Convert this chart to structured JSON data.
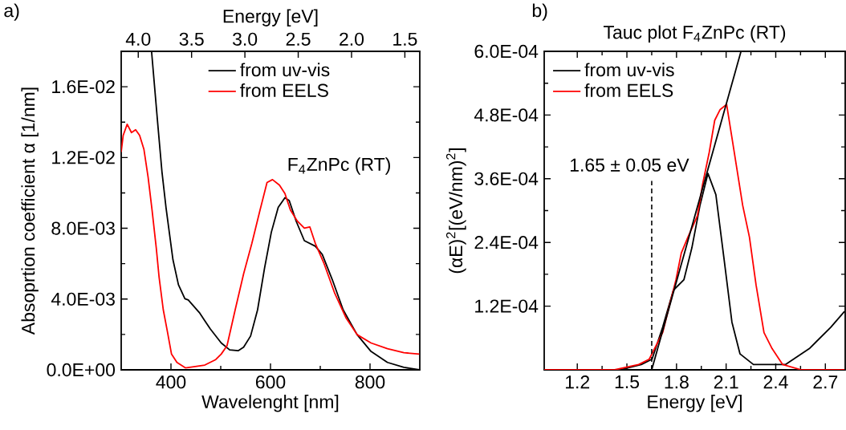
{
  "chart_data": [
    {
      "type": "line",
      "xlabel": "Wavelenght [nm]",
      "ylabel": "Absoprtion coefficient α [1/nm]",
      "x2label": "Energy [eV]",
      "xlim": [
        300,
        900
      ],
      "ylim": [
        0,
        0.018
      ],
      "x2lim": [
        4.16,
        1.36
      ],
      "xticks": [
        400,
        600,
        800
      ],
      "yticks": [
        {
          "value": 0,
          "label": "0.0E+00"
        },
        {
          "value": 0.004,
          "label": "4.0E-03"
        },
        {
          "value": 0.008,
          "label": "8.0E-03"
        },
        {
          "value": 0.012,
          "label": "1.2E-02"
        },
        {
          "value": 0.016,
          "label": "1.6E-02"
        }
      ],
      "x2ticks": [
        {
          "value": 4,
          "label": "4.0"
        },
        3.5,
        {
          "value": 3,
          "label": "3.0"
        },
        2.5,
        {
          "value": 2,
          "label": "2.0"
        },
        1.5
      ],
      "legend": "top",
      "annotations": [
        "a)",
        "F$_{4}$ZnPc (RT)"
      ],
      "series": [
        {
          "name": "from uv-vis",
          "color": "#000000",
          "x": [
            361,
            373.5,
            381.8,
            390,
            404,
            415,
            428,
            434.7,
            457,
            479,
            501,
            518,
            535,
            546,
            560,
            574,
            588,
            601.6,
            615.5,
            629,
            637.6,
            651.6,
            668,
            690,
            704,
            724,
            746,
            774,
            802,
            835,
            868,
            899
          ],
          "values": [
            0.018,
            0.01388,
            0.01122,
            0.00918,
            0.00622,
            0.00481,
            0.00402,
            0.00395,
            0.00324,
            0.00231,
            0.00152,
            0.00113,
            0.00108,
            0.00128,
            0.00191,
            0.00339,
            0.00574,
            0.00777,
            0.00918,
            0.00973,
            0.00957,
            0.0084,
            0.0073,
            0.00699,
            0.00652,
            0.00511,
            0.00339,
            0.00199,
            0.00104,
            0.00042,
            0.00014,
            0.0
          ]
        },
        {
          "name": "from EELS",
          "color": "#ff0000",
          "x": [
            300,
            304,
            312,
            320.6,
            329,
            337,
            345.6,
            354,
            362,
            370.6,
            376,
            384.5,
            393,
            401,
            412,
            429,
            446,
            468,
            490,
            501,
            512.6,
            529,
            546,
            562.6,
            579,
            593,
            604,
            618,
            629,
            640,
            654,
            668,
            679,
            690,
            707,
            729,
            752,
            774,
            802,
            835,
            868,
            899
          ],
          "values": [
            0.01231,
            0.01325,
            0.01388,
            0.01341,
            0.01357,
            0.01325,
            0.01247,
            0.0109,
            0.00903,
            0.00685,
            0.00527,
            0.0034,
            0.00214,
            0.0009,
            0.00042,
            0.00011,
            0.00018,
            0.00027,
            0.00058,
            0.00089,
            0.00136,
            0.00339,
            0.00543,
            0.00715,
            0.00903,
            0.01059,
            0.01075,
            0.01044,
            0.00996,
            0.00903,
            0.0084,
            0.00801,
            0.00808,
            0.00715,
            0.00605,
            0.00433,
            0.00292,
            0.00199,
            0.00152,
            0.0012,
            0.00097,
            0.00089
          ]
        }
      ]
    },
    {
      "type": "line",
      "title": "Tauc plot F$_{4}$ZnPc (RT)",
      "xlabel": "Energy [eV]",
      "ylabel": "(αE)$^{2}$[(eV/nm)$^{2}$]",
      "xlim": [
        1.0,
        2.82
      ],
      "ylim": [
        0,
        0.0006
      ],
      "xticks": [
        1.2,
        1.5,
        1.8,
        2.1,
        2.4,
        2.7
      ],
      "yticks": [
        {
          "value": 0.00012,
          "label": "1.2E-04"
        },
        {
          "value": 0.00024,
          "label": "2.4E-04"
        },
        {
          "value": 0.00036,
          "label": "3.6E-04"
        },
        {
          "value": 0.00048,
          "label": "4.8E-04"
        },
        {
          "value": 0.0006,
          "label": "6.0E-04"
        }
      ],
      "legend": "top left",
      "annotations": [
        "b)"
      ],
      "ref_lines": [
        {
          "axis": "x",
          "value": 1.65,
          "label": "1.65 ± 0.05 eV",
          "color": "#000000",
          "line_style": "dashed"
        }
      ],
      "series": [
        {
          "name": "from uv-vis",
          "color": "#000000",
          "x": [
            1.0,
            1.458,
            1.587,
            1.652,
            1.716,
            1.781,
            1.845,
            1.893,
            1.942,
            1.99,
            2.038,
            2.087,
            2.135,
            2.184,
            2.265,
            2.345,
            2.458,
            2.603,
            2.732,
            2.816
          ],
          "values": [
            0,
            0,
            1e-05,
            2e-05,
            8e-05,
            0.00015,
            0.00017,
            0.00023,
            0.00031,
            0.00037,
            0.00033,
            0.00021,
            9e-05,
            3e-05,
            1e-05,
            1e-05,
            1e-05,
            4e-05,
            8e-05,
            0.00011
          ]
        },
        {
          "name": "from EELS",
          "color": "#ff0000",
          "x": [
            1.0,
            1.426,
            1.571,
            1.635,
            1.716,
            1.797,
            1.829,
            1.869,
            1.926,
            1.958,
            1.998,
            2.031,
            2.063,
            2.103,
            2.144,
            2.2,
            2.241,
            2.281,
            2.329,
            2.378,
            2.442,
            2.555,
            2.816
          ],
          "values": [
            0,
            0,
            1e-05,
            2e-05,
            7e-05,
            0.00017,
            0.00022,
            0.00025,
            0.00029,
            0.00035,
            0.00041,
            0.00047,
            0.00049,
            0.0005,
            0.00042,
            0.00031,
            0.00025,
            0.00016,
            7e-05,
            4e-05,
            1e-05,
            0,
            0
          ]
        },
        {
          "type": "line",
          "color": "#000000",
          "x": [
            1.65,
            2.19
          ],
          "values": [
            0,
            0.0006
          ]
        }
      ]
    }
  ]
}
